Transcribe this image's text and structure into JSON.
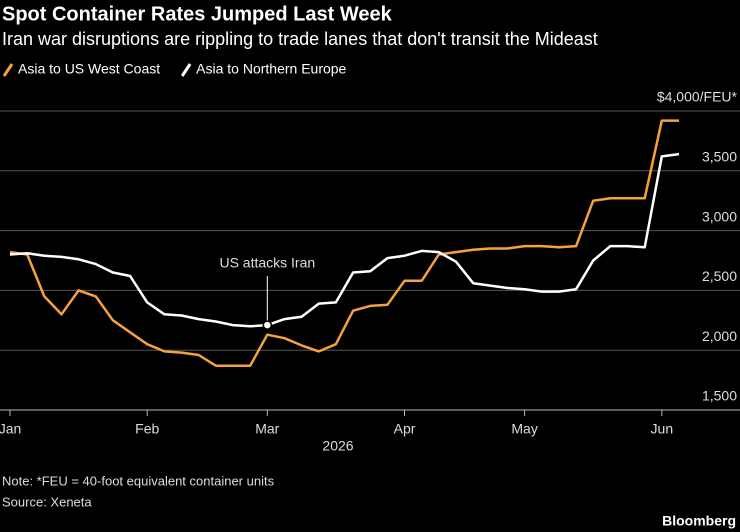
{
  "chart_data": {
    "type": "line",
    "title": "Spot Container Rates Jumped Last Week",
    "subtitle": "Iran war disruptions are rippling to trade lanes that don't transit the Mideast",
    "x_label": "2026",
    "categories": [
      "Jan",
      null,
      null,
      null,
      null,
      null,
      null,
      null,
      "Feb",
      null,
      null,
      null,
      null,
      null,
      null,
      "Mar",
      null,
      null,
      null,
      null,
      null,
      null,
      null,
      "Apr",
      null,
      null,
      null,
      null,
      null,
      null,
      "May",
      null,
      null,
      null,
      null,
      null,
      null,
      null,
      "Jun",
      null
    ],
    "series": [
      {
        "name": "Asia to US West Coast",
        "color": "#f5a23a",
        "values": [
          2820,
          2800,
          2450,
          2300,
          2500,
          2450,
          2250,
          2150,
          2050,
          1990,
          1980,
          1960,
          1870,
          1870,
          1870,
          2130,
          2100,
          2040,
          1990,
          2050,
          2330,
          2370,
          2380,
          2580,
          2580,
          2800,
          2820,
          2840,
          2850,
          2850,
          2870,
          2870,
          2860,
          2870,
          3250,
          3270,
          3270,
          3270,
          3920,
          3920
        ]
      },
      {
        "name": "Asia to Northern Europe",
        "color": "#ffffff",
        "values": [
          2800,
          2810,
          2790,
          2780,
          2760,
          2720,
          2650,
          2620,
          2400,
          2300,
          2290,
          2260,
          2240,
          2210,
          2200,
          2210,
          2260,
          2280,
          2390,
          2400,
          2650,
          2660,
          2770,
          2790,
          2830,
          2820,
          2740,
          2560,
          2540,
          2520,
          2510,
          2490,
          2490,
          2510,
          2750,
          2870,
          2870,
          2860,
          3620,
          3640
        ]
      }
    ],
    "ylim": [
      1500,
      4000
    ],
    "yticks": [
      {
        "value": 1500,
        "label": "1,500"
      },
      {
        "value": 2000,
        "label": "2,000"
      },
      {
        "value": 2500,
        "label": "2,500"
      },
      {
        "value": 3000,
        "label": "3,000"
      },
      {
        "value": 3500,
        "label": "3,500"
      },
      {
        "value": 4000,
        "label": "$4,000/FEU*"
      }
    ],
    "grid": true,
    "annotation": {
      "text": "US attacks Iran",
      "series": 1,
      "index": 15
    },
    "note": "Note: *FEU = 40-foot equivalent container units",
    "source": "Source: Xeneta",
    "brand": "Bloomberg"
  }
}
